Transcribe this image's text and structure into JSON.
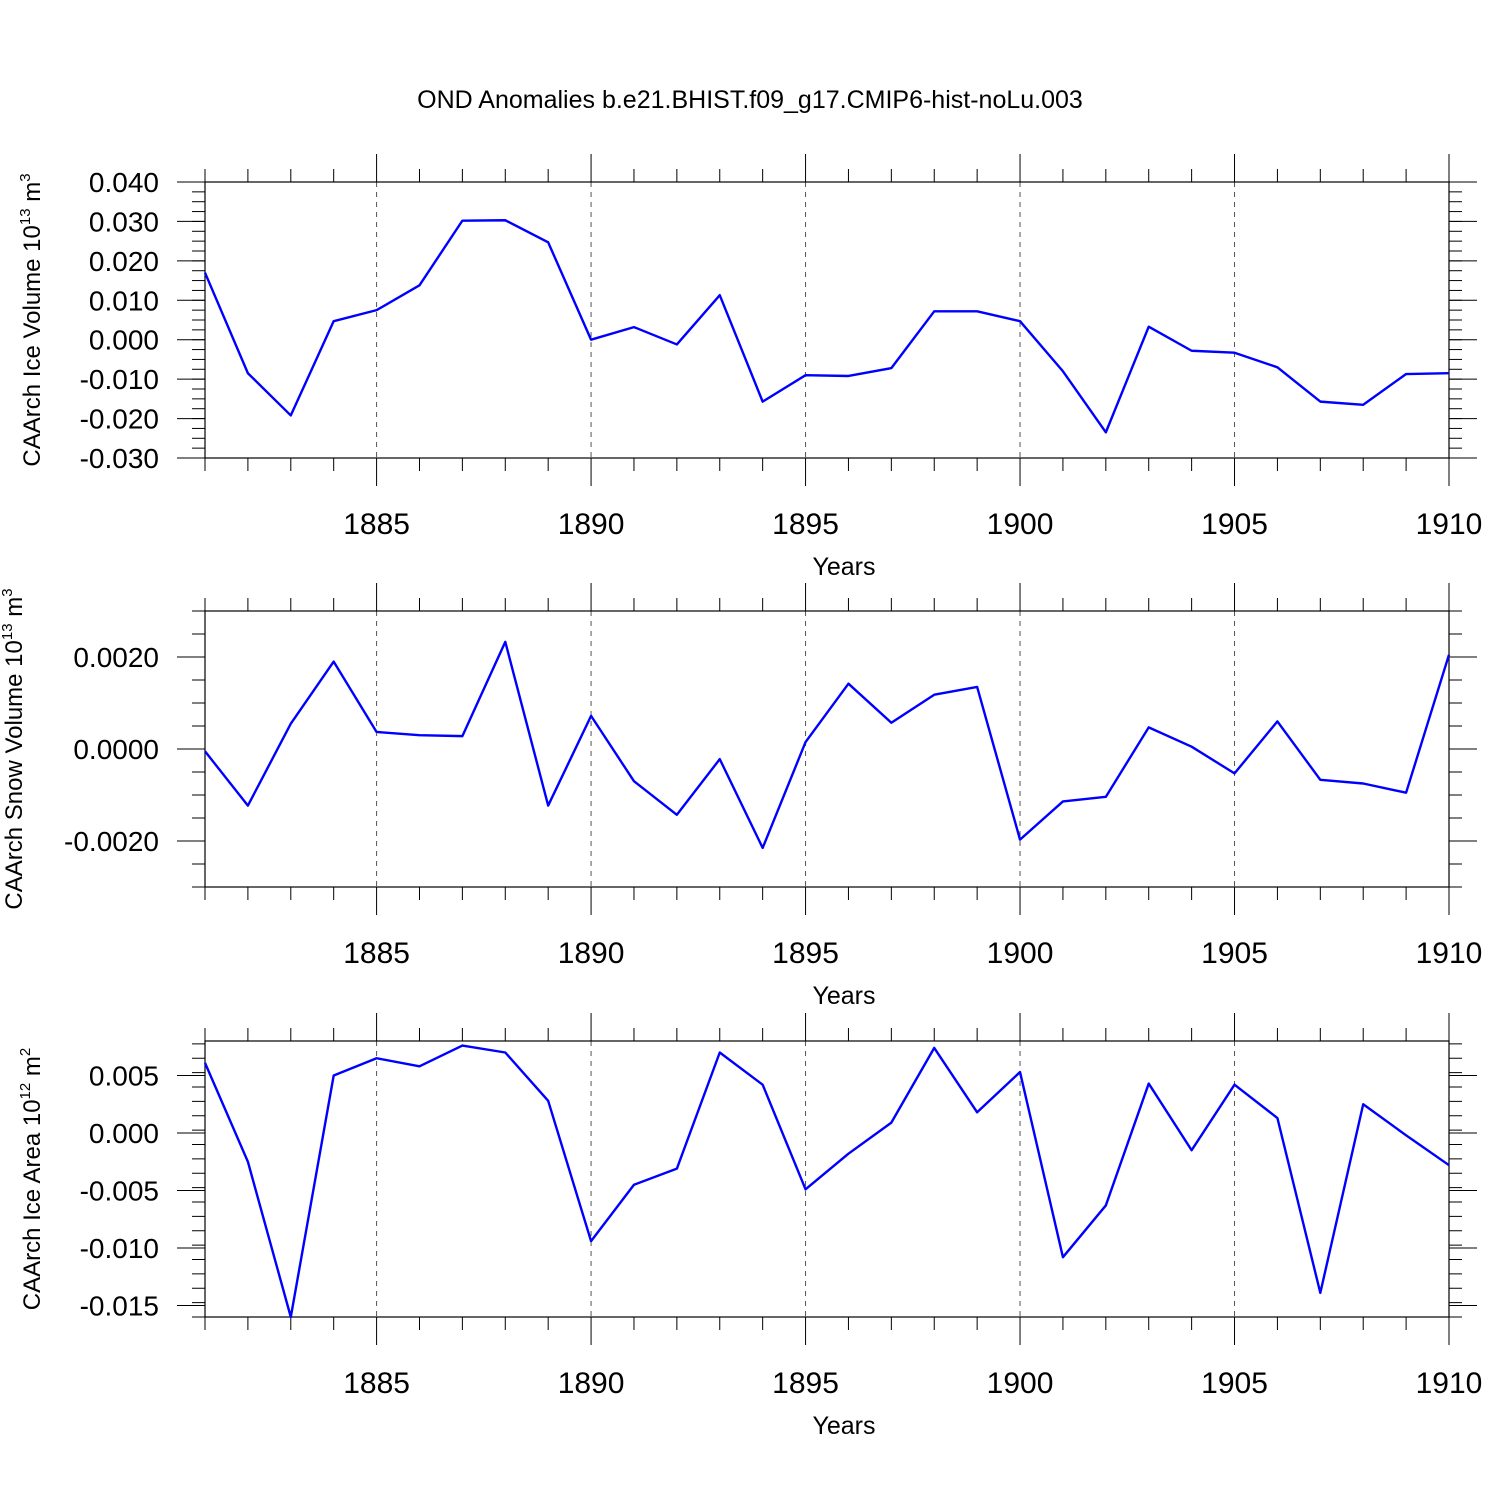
{
  "title": "OND Anomalies b.e21.BHIST.f09_g17.CMIP6-hist-noLu.003",
  "colors": {
    "line": "#0000ff",
    "axis": "#000000"
  },
  "chart_data": [
    {
      "type": "line",
      "id": "ice-volume",
      "ylabel": {
        "main": "CAArch Ice Volume 10",
        "sup1": "13",
        "mid": " m",
        "sup2": "3"
      },
      "xlabel": "Years",
      "xlim": [
        1881,
        1910
      ],
      "ylim": [
        -0.03,
        0.04
      ],
      "yticks": [
        -0.03,
        -0.02,
        -0.01,
        0.0,
        0.01,
        0.02,
        0.03,
        0.04
      ],
      "ytick_labels": [
        "-0.030",
        "-0.020",
        "-0.010",
        "0.000",
        "0.010",
        "0.020",
        "0.030",
        "0.040"
      ],
      "yminor_step": 0.0025,
      "xticks": [
        1885,
        1890,
        1895,
        1900,
        1905,
        1910
      ],
      "xtick_labels": [
        "1885",
        "1890",
        "1895",
        "1900",
        "1905",
        "1910"
      ],
      "x": [
        1881,
        1882,
        1883,
        1884,
        1885,
        1886,
        1887,
        1888,
        1889,
        1890,
        1891,
        1892,
        1893,
        1894,
        1895,
        1896,
        1897,
        1898,
        1899,
        1900,
        1901,
        1902,
        1903,
        1904,
        1905,
        1906,
        1907,
        1908,
        1909,
        1910
      ],
      "values": [
        0.017,
        -0.0085,
        -0.0192,
        0.0047,
        0.0075,
        0.0138,
        0.0302,
        0.0303,
        0.0247,
        0.0,
        0.0032,
        -0.0012,
        0.0113,
        -0.0157,
        -0.009,
        -0.0092,
        -0.0072,
        0.0072,
        0.0072,
        0.0047,
        -0.008,
        -0.0235,
        0.0033,
        -0.0028,
        -0.0033,
        -0.007,
        -0.0157,
        -0.0165,
        -0.0087,
        -0.0085
      ]
    },
    {
      "type": "line",
      "id": "snow-volume",
      "ylabel": {
        "main": "CAArch Snow Volume 10",
        "sup1": "13",
        "mid": " m",
        "sup2": "3"
      },
      "xlabel": "Years",
      "xlim": [
        1881,
        1910
      ],
      "ylim": [
        -0.003,
        0.003
      ],
      "yticks": [
        -0.002,
        0.0,
        0.002
      ],
      "ytick_labels": [
        "-0.0020",
        "0.0000",
        "0.0020"
      ],
      "yminor_step": 0.0005,
      "xticks": [
        1885,
        1890,
        1895,
        1900,
        1905,
        1910
      ],
      "xtick_labels": [
        "1885",
        "1890",
        "1895",
        "1900",
        "1905",
        "1910"
      ],
      "x": [
        1881,
        1882,
        1883,
        1884,
        1885,
        1886,
        1887,
        1888,
        1889,
        1890,
        1891,
        1892,
        1893,
        1894,
        1895,
        1896,
        1897,
        1898,
        1899,
        1900,
        1901,
        1902,
        1903,
        1904,
        1905,
        1906,
        1907,
        1908,
        1909,
        1910
      ],
      "values": [
        -5e-05,
        -0.00123,
        0.00055,
        0.0019,
        0.00037,
        0.0003,
        0.00028,
        0.00233,
        -0.00123,
        0.00072,
        -0.0007,
        -0.00143,
        -0.00022,
        -0.00215,
        0.00015,
        0.00142,
        0.00057,
        0.00118,
        0.00135,
        -0.00197,
        -0.00114,
        -0.00104,
        0.00047,
        5e-05,
        -0.00053,
        0.0006,
        -0.00067,
        -0.00075,
        -0.00095,
        0.00205
      ]
    },
    {
      "type": "line",
      "id": "ice-area",
      "ylabel": {
        "main": "CAArch Ice Area 10",
        "sup1": "12",
        "mid": " m",
        "sup2": "2"
      },
      "xlabel": "Years",
      "xlim": [
        1881,
        1910
      ],
      "ylim": [
        -0.016,
        0.008
      ],
      "yticks": [
        -0.015,
        -0.01,
        -0.005,
        0.0,
        0.005
      ],
      "ytick_labels": [
        "-0.015",
        "-0.010",
        "-0.005",
        "0.000",
        "0.005"
      ],
      "yminor_step": 0.00125,
      "xticks": [
        1885,
        1890,
        1895,
        1900,
        1905,
        1910
      ],
      "xtick_labels": [
        "1885",
        "1890",
        "1895",
        "1900",
        "1905",
        "1910"
      ],
      "x": [
        1881,
        1882,
        1883,
        1884,
        1885,
        1886,
        1887,
        1888,
        1889,
        1890,
        1891,
        1892,
        1893,
        1894,
        1895,
        1896,
        1897,
        1898,
        1899,
        1900,
        1901,
        1902,
        1903,
        1904,
        1905,
        1906,
        1907,
        1908,
        1909,
        1910
      ],
      "values": [
        0.0061,
        -0.0025,
        -0.016,
        0.005,
        0.0065,
        0.0058,
        0.0076,
        0.007,
        0.0028,
        -0.0094,
        -0.0045,
        -0.0031,
        0.007,
        0.0042,
        -0.0049,
        -0.0018,
        0.0009,
        0.0074,
        0.0018,
        0.0053,
        -0.0108,
        -0.0063,
        0.0043,
        -0.0015,
        0.0042,
        0.0013,
        -0.0139,
        0.0025,
        -0.0002,
        -0.0028
      ]
    }
  ]
}
